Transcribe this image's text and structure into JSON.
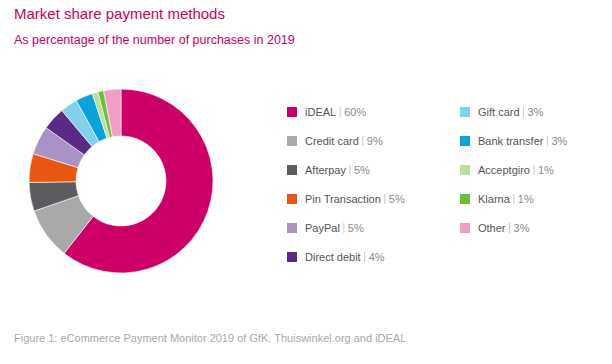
{
  "chart_data": {
    "type": "donut",
    "title": "Market share payment methods",
    "subtitle": "As percentage of the number of purchases in 2019",
    "caption": "Figure 1: eCommerce Payment Monitor 2019 of GfK, Thuiswinkel.org and iDEAL",
    "categories": [
      "iDEAL",
      "Credit card",
      "Afterpay",
      "Pin Transaction",
      "PayPal",
      "Direct debit",
      "Gift card",
      "Bank transfer",
      "Acceptgiro",
      "Klarna",
      "Other"
    ],
    "values": [
      60,
      9,
      5,
      5,
      5,
      4,
      3,
      3,
      1,
      1,
      3
    ],
    "value_labels": [
      "60%",
      "9%",
      "5%",
      "5%",
      "5%",
      "4%",
      "3%",
      "3%",
      "1%",
      "1%",
      "3%"
    ],
    "colors": [
      "#cc0066",
      "#a9a9a9",
      "#5b5b60",
      "#e8560f",
      "#a992c6",
      "#5a2a84",
      "#82d0ee",
      "#0ba2dc",
      "#b8e09e",
      "#6cbf38",
      "#f19dc6"
    ],
    "legend": "right"
  }
}
